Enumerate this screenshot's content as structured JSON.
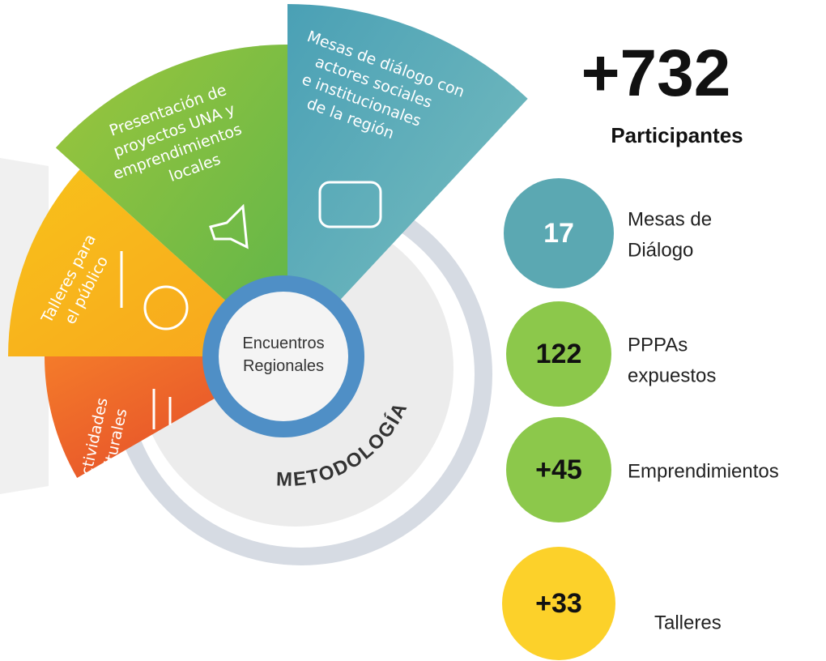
{
  "center": {
    "lines": [
      "Encuentros",
      "Regionales"
    ]
  },
  "ring_label": "METODOLOGÍA",
  "segments": [
    {
      "lines": [
        "Mesas de diálogo con",
        "actores sociales",
        "e institucionales",
        "de la región"
      ]
    },
    {
      "lines": [
        "Presentación de",
        "proyectos UNA y",
        "emprendimientos",
        "locales"
      ]
    },
    {
      "lines": [
        "Talleres para",
        "el público"
      ]
    },
    {
      "lines": [
        "Actividades",
        "culturales"
      ]
    }
  ],
  "headline": {
    "value": "+732",
    "label": "Participantes"
  },
  "stats": [
    {
      "value": 17,
      "lines": [
        "Mesas de",
        "Diálogo"
      ]
    },
    {
      "value": 122,
      "lines": [
        "PPPAs",
        "expuestos"
      ]
    },
    {
      "value": "+45",
      "lines": [
        "Emprendimientos"
      ]
    },
    {
      "value": "+33",
      "lines": [
        "Talleres"
      ]
    }
  ]
}
